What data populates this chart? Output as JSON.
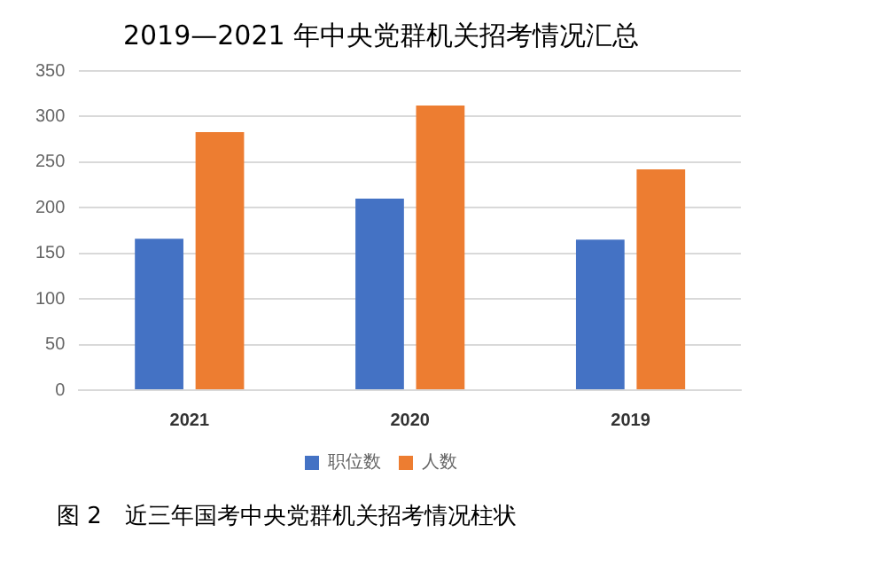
{
  "chart_data": {
    "type": "bar",
    "title": "2019—2021 年中央党群机关招考情况汇总",
    "categories": [
      "2021",
      "2020",
      "2019"
    ],
    "series": [
      {
        "name": "职位数",
        "color": "#4472c4",
        "values": [
          166,
          210,
          165
        ]
      },
      {
        "name": "人数",
        "color": "#ed7d31",
        "values": [
          283,
          312,
          242
        ]
      }
    ],
    "ylim": [
      0,
      350
    ],
    "yticks": [
      0,
      50,
      100,
      150,
      200,
      250,
      300,
      350
    ],
    "grid": "y",
    "legend": "bottom",
    "annotations": [
      "图 2　近三年国考中央党群机关招考情况柱状"
    ]
  }
}
